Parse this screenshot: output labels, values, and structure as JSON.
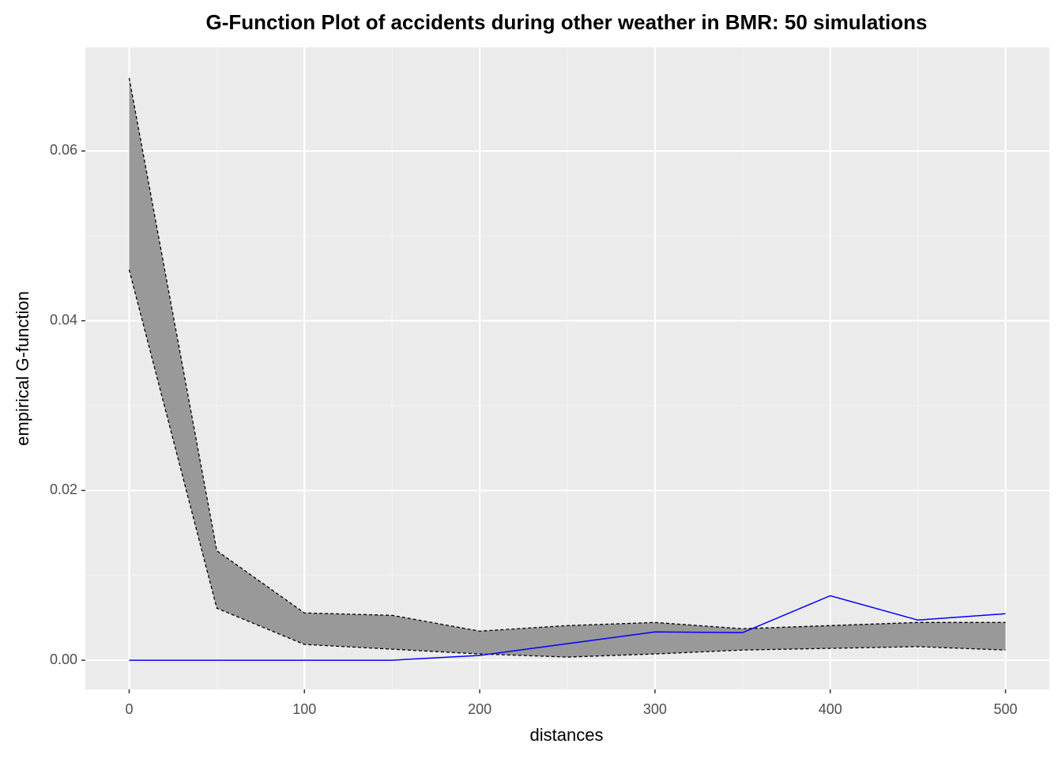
{
  "chart_data": {
    "type": "line",
    "title": "G-Function Plot of accidents during other weather in BMR: 50 simulations",
    "x_label": "distances",
    "y_label": "empirical G-function",
    "x": [
      0,
      50,
      100,
      150,
      200,
      250,
      300,
      350,
      400,
      450,
      500
    ],
    "band": {
      "color": "#999999",
      "upper": [
        0.0686,
        0.0129,
        0.00557,
        0.00529,
        0.00343,
        0.00408,
        0.00445,
        0.00371,
        0.00408,
        0.00445,
        0.00445
      ],
      "lower": [
        0.046,
        0.00613,
        0.00186,
        0.0013,
        0.00074,
        0.00037,
        0.00074,
        0.0012,
        0.0014,
        0.0016,
        0.0012
      ]
    },
    "series": [
      {
        "color": "#0000ff",
        "values": [
          0,
          0,
          0,
          0,
          0.00056,
          0.00195,
          0.00334,
          0.00325,
          0.0076,
          0.00473,
          0.00548
        ]
      }
    ],
    "xlim": [
      -25,
      525
    ],
    "ylim": [
      -0.00344,
      0.0722
    ],
    "xticks": [
      0,
      100,
      200,
      300,
      400,
      500
    ],
    "yticks": [
      {
        "value": 0,
        "label": "0.00"
      },
      {
        "value": 0.02,
        "label": "0.02"
      },
      {
        "value": 0.04,
        "label": "0.04"
      },
      {
        "value": 0.06,
        "label": "0.06"
      }
    ],
    "grid": true,
    "minor_grid": true
  }
}
